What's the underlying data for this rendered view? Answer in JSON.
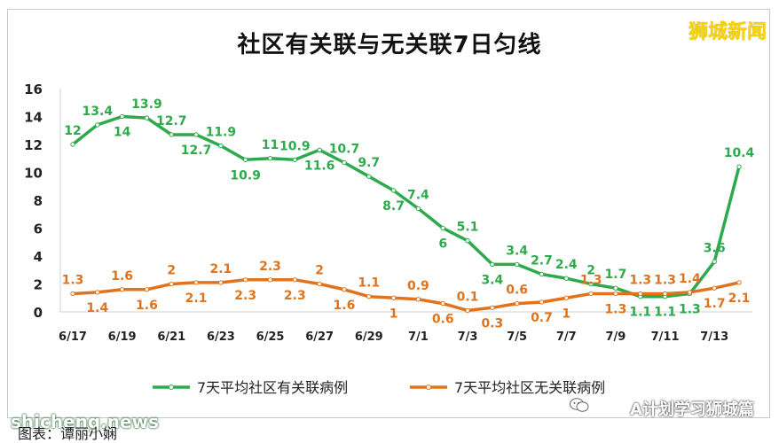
{
  "chart_data": {
    "type": "line",
    "title": "社区有关联与无关联7日匀线",
    "x": [
      "6/17",
      "6/18",
      "6/19",
      "6/20",
      "6/21",
      "6/22",
      "6/23",
      "6/24",
      "6/25",
      "6/26",
      "6/27",
      "6/28",
      "6/29",
      "6/30",
      "7/1",
      "7/2",
      "7/3",
      "7/4",
      "7/5",
      "7/6",
      "7/7",
      "7/8",
      "7/9",
      "7/10",
      "7/11",
      "7/12",
      "7/13",
      "7/14"
    ],
    "x_tick_labels": [
      "6/17",
      "6/19",
      "6/21",
      "6/23",
      "6/25",
      "6/27",
      "6/29",
      "7/1",
      "7/3",
      "7/5",
      "7/7",
      "7/9",
      "7/11",
      "7/13"
    ],
    "ylim": [
      0,
      16
    ],
    "yticks": [
      0,
      2,
      4,
      6,
      8,
      10,
      12,
      14,
      16
    ],
    "grid": false,
    "legend_position": "bottom",
    "series": [
      {
        "name": "7天平均社区有关联病例",
        "color": "#2eaa4c",
        "values": [
          12,
          13.4,
          14,
          13.9,
          12.7,
          12.7,
          11.9,
          10.9,
          11,
          10.9,
          11.6,
          10.7,
          9.7,
          8.7,
          7.4,
          6,
          5.1,
          3.4,
          3.4,
          2.7,
          2.4,
          2,
          1.7,
          1.1,
          1.1,
          1.3,
          3.6,
          10.4
        ],
        "labels": [
          "12",
          "13.4",
          "14",
          "13.9",
          "12.7",
          "12.7",
          "11.9",
          "10.9",
          "11",
          "10.9",
          "11.6",
          "10.7",
          "9.7",
          "8.7",
          "7.4",
          "6",
          "5.1",
          "3.4",
          "3.4",
          "2.7",
          "2.4",
          "2",
          "1.7",
          "1.1",
          "1.1",
          "1.3",
          "3.6",
          "10.4"
        ]
      },
      {
        "name": "7天平均社区无关联病例",
        "color": "#e0731b",
        "values": [
          1.3,
          1.4,
          1.6,
          1.6,
          2,
          2.1,
          2.1,
          2.3,
          2.3,
          2.3,
          2,
          1.6,
          1.1,
          1,
          0.9,
          0.6,
          0.1,
          0.3,
          0.6,
          0.7,
          1,
          1.3,
          1.3,
          1.3,
          1.3,
          1.4,
          1.7,
          2.1
        ],
        "labels": [
          "1.3",
          "1.4",
          "1.6",
          "1.6",
          "2",
          "2.1",
          "2.1",
          "2.3",
          "2.3",
          "2.3",
          "2",
          "1.6",
          "1.1",
          "1",
          "0.9",
          "0.6",
          "0.1",
          "0.3",
          "0.6",
          "0.7",
          "1",
          "1.3",
          "1.3",
          "1.3",
          "1.3",
          "1.4",
          "1.7",
          "2.1"
        ]
      }
    ]
  },
  "watermarks": {
    "brand": "狮城新闻",
    "site": "shicheng.news",
    "account": "A计划学习狮城篇",
    "caption": "图表：谭丽小娴"
  }
}
